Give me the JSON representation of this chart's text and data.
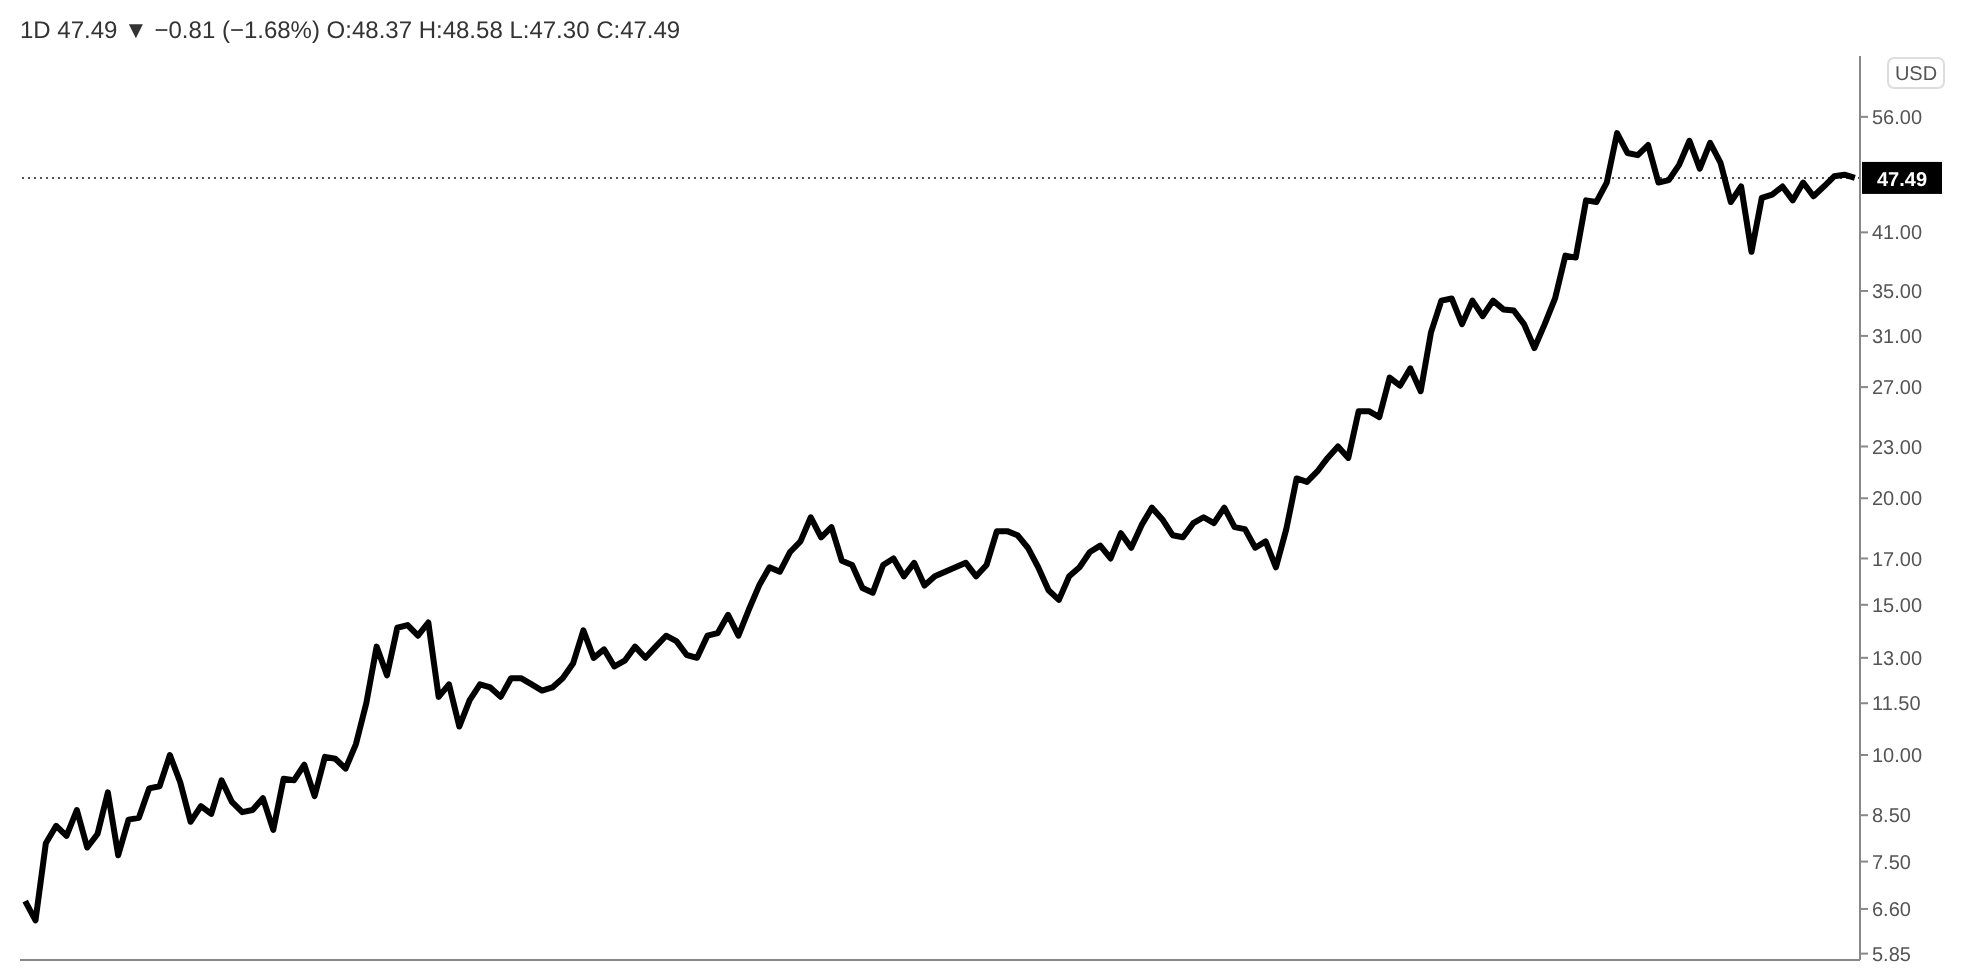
{
  "chart_data": {
    "type": "line",
    "title": "1D 47.49 ▼ −0.81 (−1.68%) O:48.37 H:48.58 L:47.30 C:47.49",
    "ylabel": "USD",
    "log": "y",
    "categories": [
      null,
      null,
      null,
      null,
      null,
      null,
      null,
      null,
      null,
      null,
      null,
      null,
      null,
      null,
      null,
      null,
      null,
      null,
      null,
      null,
      null,
      null,
      null,
      null,
      null,
      null,
      null,
      null,
      null,
      null,
      null,
      null,
      null,
      null,
      null,
      null,
      null,
      null,
      null,
      null,
      null,
      null,
      null,
      null,
      null,
      null,
      null,
      null,
      null,
      null,
      null,
      null,
      null,
      null,
      null,
      null,
      null,
      null,
      null,
      null,
      null,
      null,
      null,
      null,
      null,
      null,
      null,
      null,
      null,
      null,
      null,
      null,
      null,
      null,
      null,
      null,
      null,
      null,
      null,
      null,
      null,
      null,
      null,
      null,
      null,
      null,
      null,
      null,
      null,
      null,
      null,
      null,
      null,
      null,
      null,
      null,
      null,
      null,
      null,
      null,
      null,
      null,
      null,
      null,
      null,
      null,
      null,
      null,
      null,
      null,
      null,
      null,
      null,
      null,
      null,
      null,
      null,
      null,
      null,
      null,
      null,
      null,
      null,
      null,
      null,
      null,
      null,
      null,
      null,
      null,
      null,
      null,
      null,
      null,
      null,
      null,
      null,
      null,
      null,
      null,
      null,
      null,
      null,
      null,
      null,
      null,
      null,
      null,
      null,
      null,
      null,
      null,
      null,
      null,
      null,
      null,
      null,
      null,
      null,
      null,
      null,
      null,
      null,
      null,
      null,
      null,
      null,
      null,
      null,
      null,
      null,
      null,
      null,
      null,
      null,
      null,
      null,
      null
    ],
    "tick_labels": "y",
    "marker": "none",
    "line_style": "solid",
    "legend": false,
    "ylim": [
      5.75,
      66
    ],
    "yticks": [
      {
        "value": 5.85,
        "label": "5.85"
      },
      {
        "value": 6.6,
        "label": "6.60"
      },
      {
        "value": 7.5,
        "label": "7.50"
      },
      {
        "value": 8.5,
        "label": "8.50"
      },
      {
        "value": 10,
        "label": "10.00"
      },
      {
        "value": 11.5,
        "label": "11.50"
      },
      {
        "value": 13,
        "label": "13.00"
      },
      {
        "value": 15,
        "label": "15.00"
      },
      {
        "value": 17,
        "label": "17.00"
      },
      {
        "value": 20,
        "label": "20.00"
      },
      {
        "value": 23,
        "label": "23.00"
      },
      {
        "value": 27,
        "label": "27.00"
      },
      {
        "value": 31,
        "label": "31.00"
      },
      {
        "value": 35,
        "label": "35.00"
      },
      {
        "value": 41,
        "label": "41.00"
      },
      {
        "value": 56,
        "label": "56.00"
      }
    ],
    "ref_lines": [
      {
        "axis": "y",
        "value": 47.49,
        "label": "47.49",
        "color": "#555555",
        "line_style": "dotted"
      }
    ],
    "series": [
      {
        "color": "#000000",
        "values": [
          6.74,
          6.4,
          7.88,
          8.26,
          8.04,
          8.62,
          7.79,
          8.08,
          9.04,
          7.63,
          8.4,
          8.44,
          9.14,
          9.19,
          10.0,
          9.29,
          8.35,
          8.71,
          8.53,
          9.34,
          8.81,
          8.57,
          8.62,
          8.9,
          8.17,
          9.38,
          9.34,
          9.74,
          8.95,
          9.95,
          9.9,
          9.64,
          10.3,
          11.5,
          13.4,
          12.4,
          14.1,
          14.2,
          13.8,
          14.3,
          11.7,
          12.1,
          10.8,
          11.6,
          12.1,
          12.0,
          11.7,
          12.3,
          12.3,
          12.1,
          11.9,
          12.0,
          12.3,
          12.8,
          14.0,
          13.0,
          13.3,
          12.7,
          12.9,
          13.4,
          13.0,
          13.4,
          13.8,
          13.6,
          13.1,
          13.0,
          13.8,
          13.9,
          14.6,
          13.8,
          14.8,
          15.8,
          16.6,
          16.4,
          17.3,
          17.8,
          19.0,
          18.0,
          18.5,
          16.9,
          16.7,
          15.7,
          15.5,
          16.7,
          17.0,
          16.2,
          16.8,
          15.8,
          16.2,
          16.4,
          16.6,
          16.8,
          16.2,
          16.7,
          18.3,
          18.3,
          18.1,
          17.5,
          16.6,
          15.6,
          15.2,
          16.2,
          16.6,
          17.3,
          17.6,
          17.0,
          18.2,
          17.5,
          18.6,
          19.5,
          18.9,
          18.1,
          18.0,
          18.7,
          19.0,
          18.7,
          19.5,
          18.5,
          18.4,
          17.5,
          17.8,
          16.6,
          18.4,
          21.1,
          20.9,
          21.5,
          22.3,
          23.0,
          22.3,
          25.3,
          25.3,
          24.9,
          27.7,
          27.1,
          28.4,
          26.7,
          31.3,
          34.1,
          34.3,
          32.0,
          34.1,
          32.7,
          34.1,
          33.3,
          33.2,
          32.0,
          30.0,
          32.0,
          34.3,
          38.5,
          38.3,
          44.7,
          44.5,
          46.9,
          53.6,
          50.8,
          50.5,
          51.9,
          46.9,
          47.2,
          49.2,
          52.5,
          48.7,
          52.2,
          49.5,
          44.5,
          46.4,
          38.9,
          45.0,
          45.4,
          46.4,
          44.7,
          46.9,
          45.2,
          46.4,
          47.7,
          47.9,
          47.49
        ]
      }
    ]
  }
}
